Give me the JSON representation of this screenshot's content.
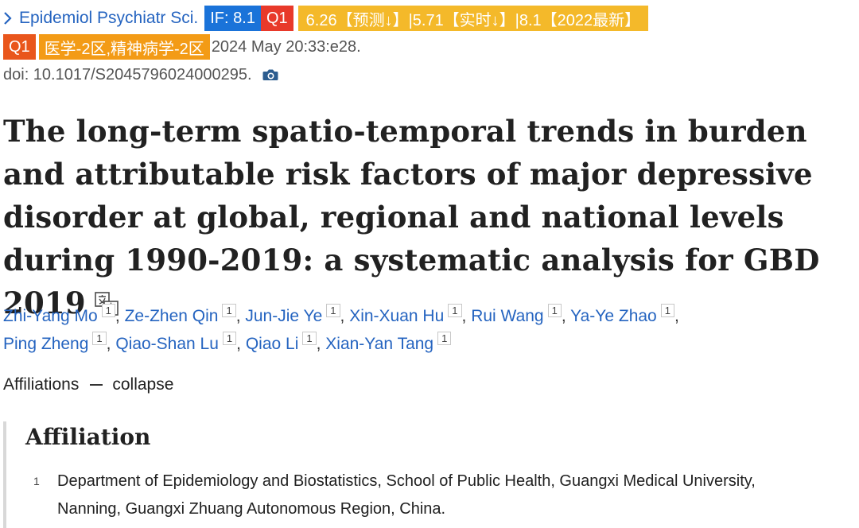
{
  "journal": {
    "name": "Epidemiol Psychiatr Sci.",
    "if_label": "IF: 8.1",
    "quartile": "Q1",
    "prediction": "6.26【预测↓】|5.71【实时↓】|8.1【2022最新】",
    "cas_quartile": "Q1",
    "cas_zone": "医学-2区,精神病学-2区",
    "pub_date": "2024 May 20:33:e28.",
    "colors": {
      "link": "#2564c0",
      "if_badge": "#1a73d9",
      "q1_badge": "#e8392a",
      "prediction_badge": "#f4b92a",
      "q1b_badge": "#e9561c",
      "cas_badge": "#f39b16"
    }
  },
  "doi": {
    "text": "doi: 10.1017/S2045796024000295.",
    "icon": "camera-icon"
  },
  "article": {
    "title": "The long-term spatio-temporal trends in burden and attributable risk factors of major depressive disorder at global, regional and national levels during 1990-2019: a systematic analysis for GBD 2019",
    "translate_icon": "translate-icon"
  },
  "authors": [
    {
      "name": "Zhi-Yang Mo",
      "aff": "1"
    },
    {
      "name": "Ze-Zhen Qin",
      "aff": "1"
    },
    {
      "name": "Jun-Jie Ye",
      "aff": "1"
    },
    {
      "name": "Xin-Xuan Hu",
      "aff": "1"
    },
    {
      "name": "Rui Wang",
      "aff": "1"
    },
    {
      "name": "Ya-Ye Zhao",
      "aff": "1"
    },
    {
      "name": "Ping Zheng",
      "aff": "1"
    },
    {
      "name": "Qiao-Shan Lu",
      "aff": "1"
    },
    {
      "name": "Qiao Li",
      "aff": "1"
    },
    {
      "name": "Xian-Yan Tang",
      "aff": "1"
    }
  ],
  "affiliations": {
    "toggle_label": "Affiliations",
    "collapse_label": "collapse",
    "heading": "Affiliation",
    "items": [
      {
        "num": "1",
        "text": "Department of Epidemiology and Biostatistics, School of Public Health, Guangxi Medical University, Nanning, Guangxi Zhuang Autonomous Region, China."
      }
    ]
  }
}
